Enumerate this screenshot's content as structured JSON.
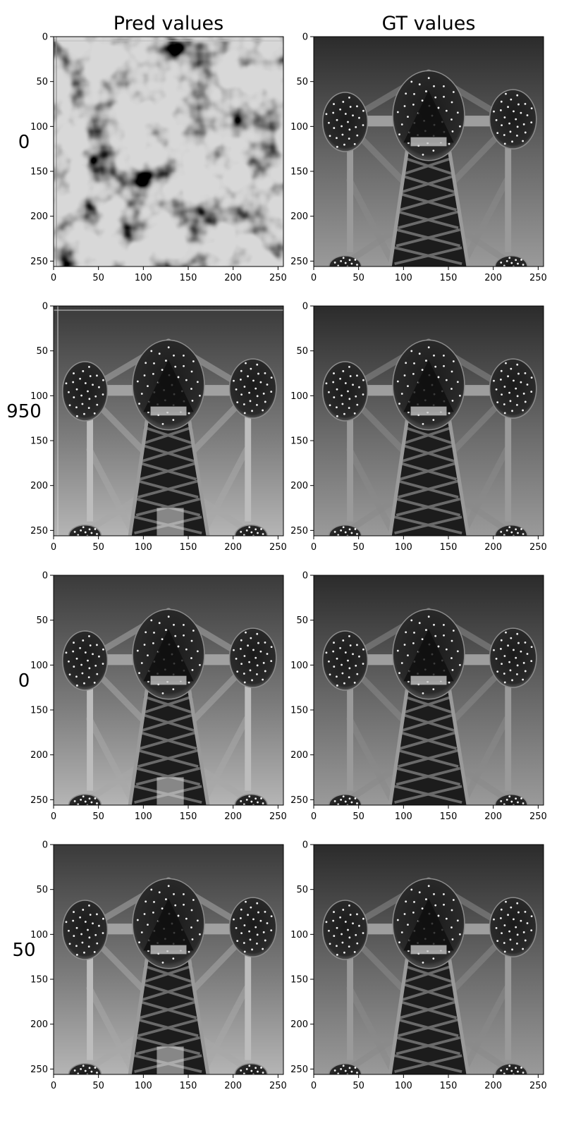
{
  "figure": {
    "column_titles": [
      "Pred values",
      "GT values"
    ],
    "row_labels": [
      "0",
      "950",
      "0",
      "50"
    ]
  },
  "chart_data": {
    "type": "image-grid",
    "xlim": [
      0,
      256
    ],
    "ylim": [
      256,
      0
    ],
    "x_ticks": [
      0,
      50,
      100,
      150,
      200,
      250
    ],
    "y_ticks": [
      0,
      50,
      100,
      150,
      200,
      250
    ],
    "grid": false,
    "panels": [
      {
        "row": 0,
        "col": 0,
        "content": "noise"
      },
      {
        "row": 0,
        "col": 1,
        "content": "atomium-gt"
      },
      {
        "row": 1,
        "col": 0,
        "content": "atomium-pred"
      },
      {
        "row": 1,
        "col": 1,
        "content": "atomium-gt"
      },
      {
        "row": 2,
        "col": 0,
        "content": "atomium-pred"
      },
      {
        "row": 2,
        "col": 1,
        "content": "atomium-gt"
      },
      {
        "row": 3,
        "col": 0,
        "content": "atomium-pred"
      },
      {
        "row": 3,
        "col": 1,
        "content": "atomium-gt"
      }
    ]
  }
}
